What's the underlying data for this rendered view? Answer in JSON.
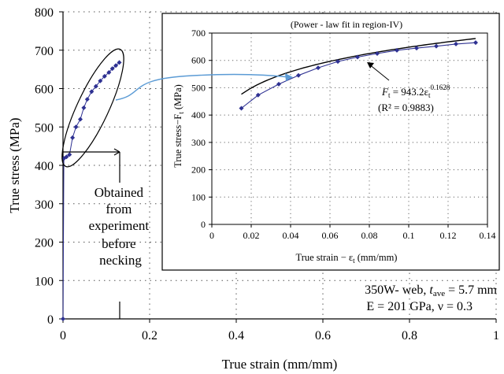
{
  "chart_data": [
    {
      "type": "scatter",
      "xlabel": "True strain (mm/mm)",
      "ylabel": "True stress (MPa)",
      "xlim": [
        0,
        1
      ],
      "ylim": [
        0,
        800
      ],
      "xticks": [
        "0",
        "0.2",
        "0.4",
        "0.6",
        "0.8",
        "1"
      ],
      "yticks": [
        "0",
        "100",
        "200",
        "300",
        "400",
        "500",
        "600",
        "700",
        "800"
      ],
      "grid": true,
      "series": [
        {
          "values": [
            {
              "x": 0.0,
              "y": 0
            },
            {
              "x": 0.002,
              "y": 418
            },
            {
              "x": 0.008,
              "y": 422
            },
            {
              "x": 0.015,
              "y": 428
            },
            {
              "x": 0.022,
              "y": 472
            },
            {
              "x": 0.03,
              "y": 500
            },
            {
              "x": 0.04,
              "y": 520
            },
            {
              "x": 0.048,
              "y": 550
            },
            {
              "x": 0.056,
              "y": 572
            },
            {
              "x": 0.066,
              "y": 592
            },
            {
              "x": 0.076,
              "y": 606
            },
            {
              "x": 0.086,
              "y": 620
            },
            {
              "x": 0.096,
              "y": 632
            },
            {
              "x": 0.106,
              "y": 642
            },
            {
              "x": 0.114,
              "y": 652
            },
            {
              "x": 0.122,
              "y": 660
            },
            {
              "x": 0.13,
              "y": 668
            }
          ]
        }
      ],
      "annotations": {
        "experiment_label": [
          "Obtained",
          "from",
          "experiment",
          "before",
          "necking"
        ],
        "material_line1_pre": "350W- web, ",
        "material_line1_var": "t",
        "material_line1_sub": "ave",
        "material_line1_post": " = 5.7 mm",
        "material_line2": "E = 201 GPa,  ν = 0.3"
      }
    },
    {
      "type": "line",
      "title": "(Power - law fit in region-IV)",
      "xlabel": "True strain − ε",
      "xlabel_sub": "t",
      "xlabel_units": " (mm/mm)",
      "ylabel": "True stress−F",
      "ylabel_sub": "t",
      "ylabel_units": " (MPa)",
      "xlim": [
        0,
        0.14
      ],
      "ylim": [
        0,
        700
      ],
      "xticks": [
        "0",
        "0.02",
        "0.04",
        "0.06",
        "0.08",
        "0.1",
        "0.12",
        "0.14"
      ],
      "yticks": [
        "0",
        "100",
        "200",
        "300",
        "400",
        "500",
        "600",
        "700"
      ],
      "grid": true,
      "series": [
        {
          "marker": "diamond",
          "values": [
            {
              "x": 0.015,
              "y": 425
            },
            {
              "x": 0.0235,
              "y": 473
            },
            {
              "x": 0.034,
              "y": 513
            },
            {
              "x": 0.044,
              "y": 545
            },
            {
              "x": 0.054,
              "y": 573
            },
            {
              "x": 0.064,
              "y": 596
            },
            {
              "x": 0.074,
              "y": 612
            },
            {
              "x": 0.084,
              "y": 625
            },
            {
              "x": 0.094,
              "y": 637
            },
            {
              "x": 0.104,
              "y": 645
            },
            {
              "x": 0.114,
              "y": 652
            },
            {
              "x": 0.124,
              "y": 660
            },
            {
              "x": 0.134,
              "y": 665
            }
          ]
        },
        {
          "fit": {
            "coefficient": 943.2,
            "exponent": 0.1628,
            "x_from": 0.015,
            "x_to": 0.134
          }
        }
      ],
      "equation": {
        "lhs": "F",
        "lhs_sub": "t",
        "rhs": " = 943.2ε",
        "rhs_sub": "t",
        "rhs_sup": "0.1628"
      },
      "r2": "(R² = 0.9883)"
    }
  ],
  "colors": {
    "marker": "#2e3192",
    "fit_line": "#000000",
    "arrow": "#5b9bd5",
    "axis": "#000000"
  }
}
